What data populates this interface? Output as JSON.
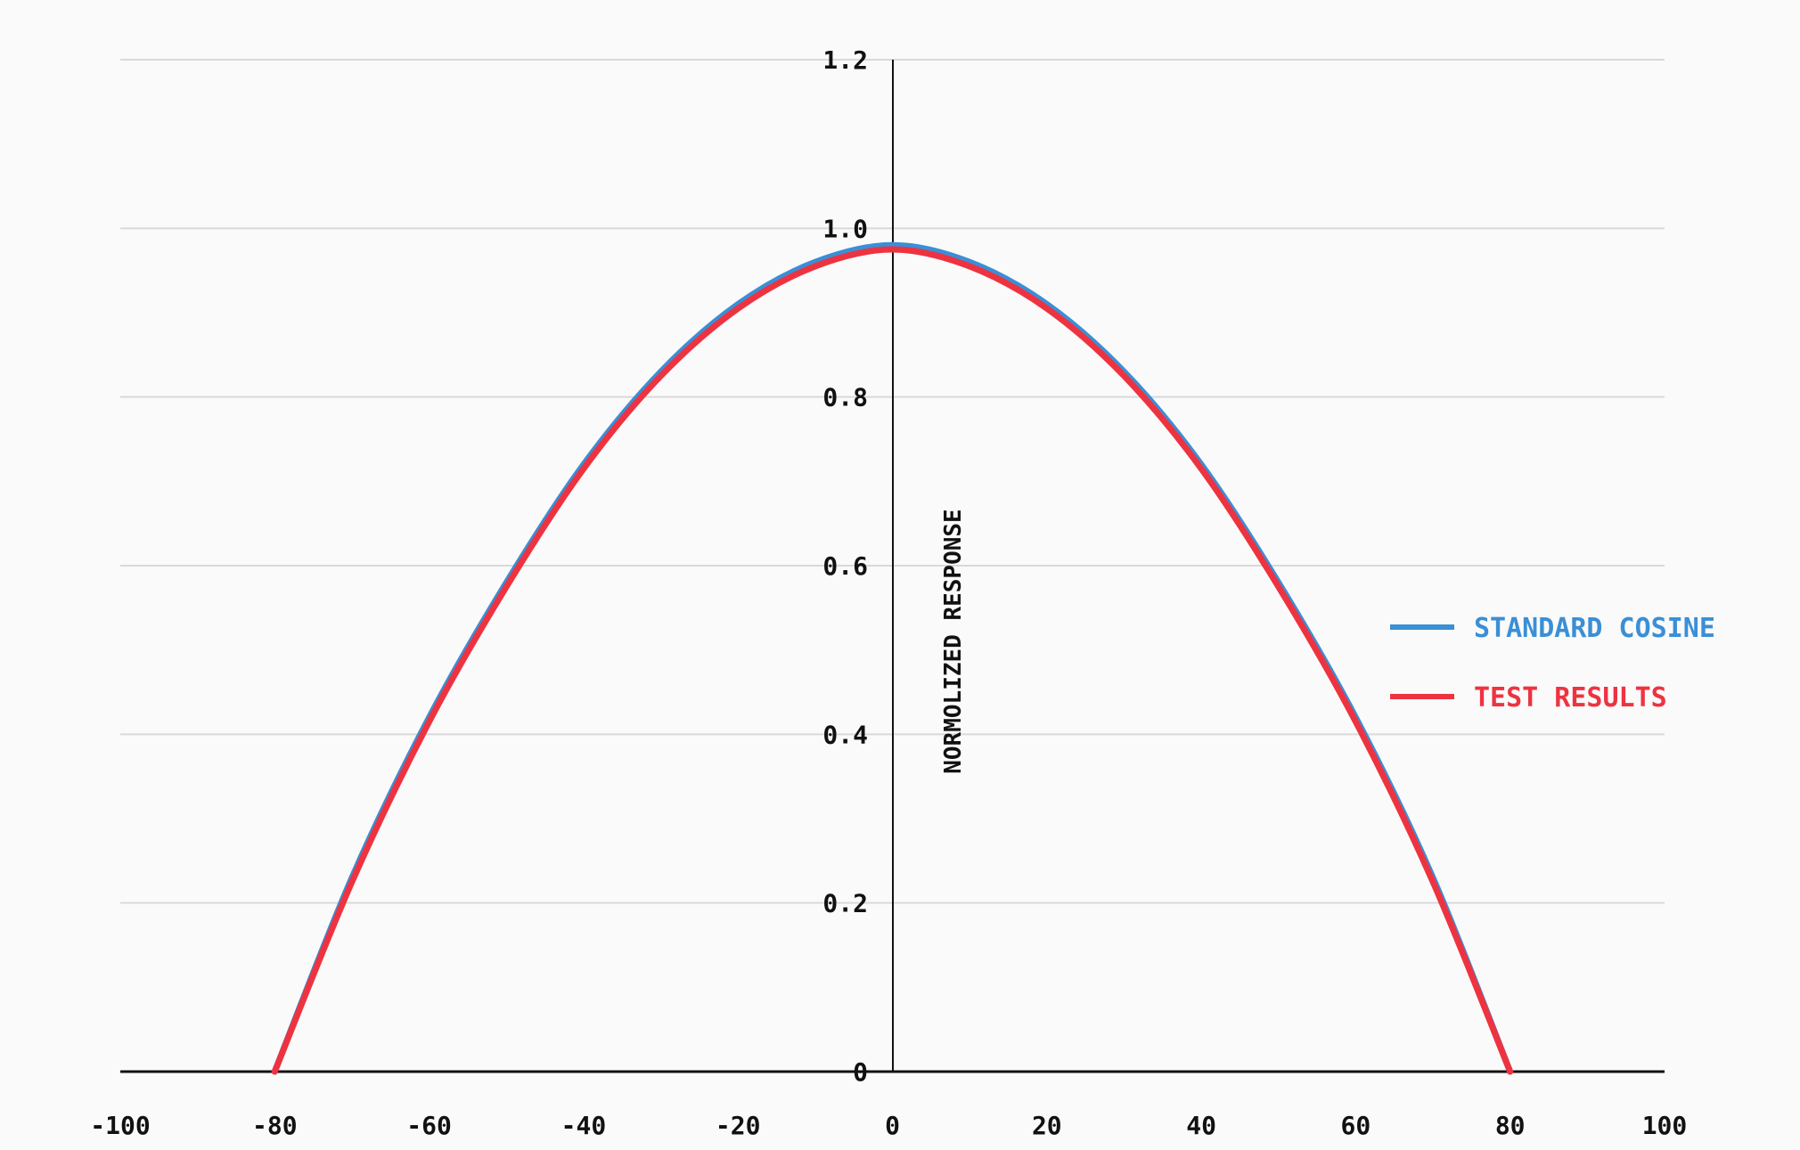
{
  "chart_data": {
    "type": "line",
    "title": "",
    "xlabel": "",
    "ylabel": "NORMOLIZED RESPONSE",
    "xlim": [
      -100,
      100
    ],
    "ylim": [
      0,
      1.2
    ],
    "x_ticks": [
      -100,
      -80,
      -60,
      -40,
      -20,
      0,
      20,
      40,
      60,
      80,
      100
    ],
    "x_tick_labels": [
      "-100",
      "-80",
      "-60",
      "-40",
      "-20",
      "0",
      "20",
      "40",
      "60",
      "80",
      "100"
    ],
    "y_ticks": [
      0,
      0.2,
      0.4,
      0.6,
      0.8,
      1.0,
      1.2
    ],
    "y_tick_labels": [
      "0",
      "0.2",
      "0.4",
      "0.6",
      "0.8",
      "1.0",
      "1.2"
    ],
    "grid": true,
    "legend_position": "right",
    "x": [
      -80,
      -70,
      -60,
      -50,
      -40,
      -30,
      -20,
      -10,
      0,
      10,
      20,
      30,
      40,
      50,
      60,
      70,
      80
    ],
    "series": [
      {
        "name": "STANDARD COSINE",
        "color": "#3a8fd6",
        "values": [
          0.0,
          0.23,
          0.42,
          0.58,
          0.72,
          0.83,
          0.91,
          0.96,
          0.98,
          0.96,
          0.91,
          0.83,
          0.72,
          0.58,
          0.42,
          0.23,
          0.0
        ]
      },
      {
        "name": "TEST RESULTS",
        "color": "#ee3340",
        "values": [
          0.0,
          0.225,
          0.415,
          0.575,
          0.715,
          0.825,
          0.905,
          0.955,
          0.975,
          0.955,
          0.905,
          0.825,
          0.715,
          0.575,
          0.415,
          0.225,
          0.0
        ]
      }
    ]
  },
  "colors": {
    "background": "#fafafa",
    "gridline": "#d9d9d9",
    "axis": "#111111"
  }
}
